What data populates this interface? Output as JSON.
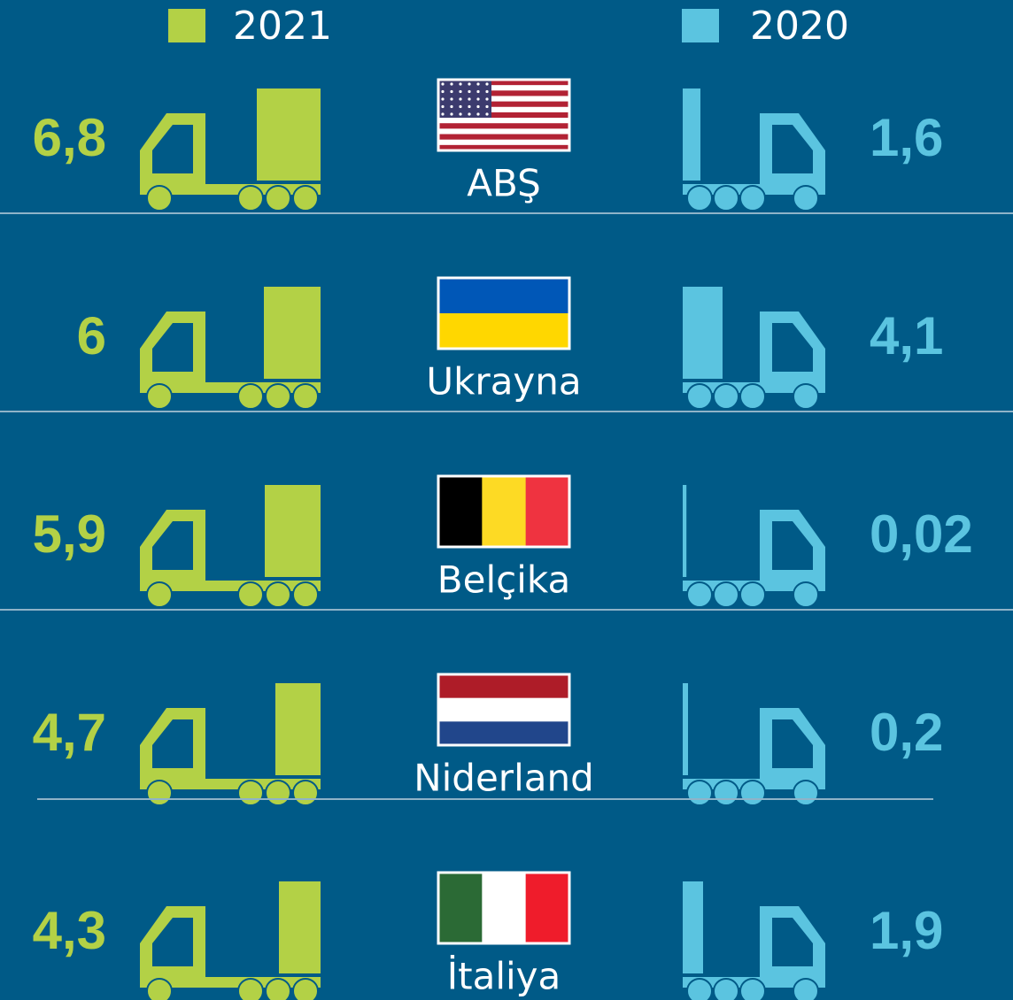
{
  "chart_data": {
    "type": "truck",
    "categories": [
      "ABŞ",
      "Ukrayna",
      "Belçika",
      "Niderland",
      "İtaliya"
    ],
    "series": [
      {
        "name": "2021",
        "color": "#b3d146",
        "values": [
          6.8,
          6,
          5.9,
          4.7,
          4.3
        ],
        "value_labels": [
          "6,8",
          "6",
          "5,9",
          "4,7",
          "4,3"
        ]
      },
      {
        "name": "2020",
        "color": "#5bc4e0",
        "values": [
          1.6,
          4.1,
          0.02,
          0.2,
          1.9
        ],
        "value_labels": [
          "1,6",
          "4,1",
          "0,02",
          "0,2",
          "1,9"
        ]
      }
    ]
  }
}
